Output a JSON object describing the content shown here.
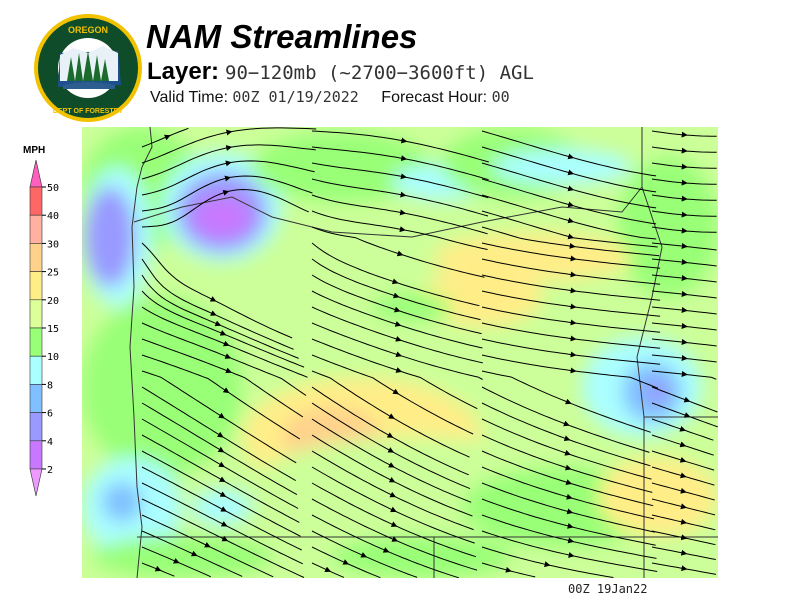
{
  "header": {
    "logo_text": "OREGON DEPARTMENT OF FORESTRY",
    "title": "NAM Streamlines",
    "layer_label": "Layer:",
    "layer_value": "90−120mb (~2700−3600ft) AGL",
    "valid_label": "Valid Time:",
    "valid_value": "00Z 01/19/2022",
    "forecast_label": "Forecast Hour:",
    "forecast_value": "00"
  },
  "colorbar": {
    "unit": "MPH",
    "ticks": [
      "50",
      "40",
      "30",
      "25",
      "20",
      "15",
      "10",
      "8",
      "6",
      "4",
      "2"
    ],
    "colors": [
      "#ff60c0",
      "#ff6666",
      "#ffb0a0",
      "#ffd28c",
      "#ffee88",
      "#ddff99",
      "#99ff77",
      "#aaffff",
      "#80c0ff",
      "#9999ff",
      "#c878ff",
      "#ee99ff"
    ]
  },
  "map": {
    "timestamp": "00Z 19Jan22",
    "base_color": "#ccff99"
  }
}
